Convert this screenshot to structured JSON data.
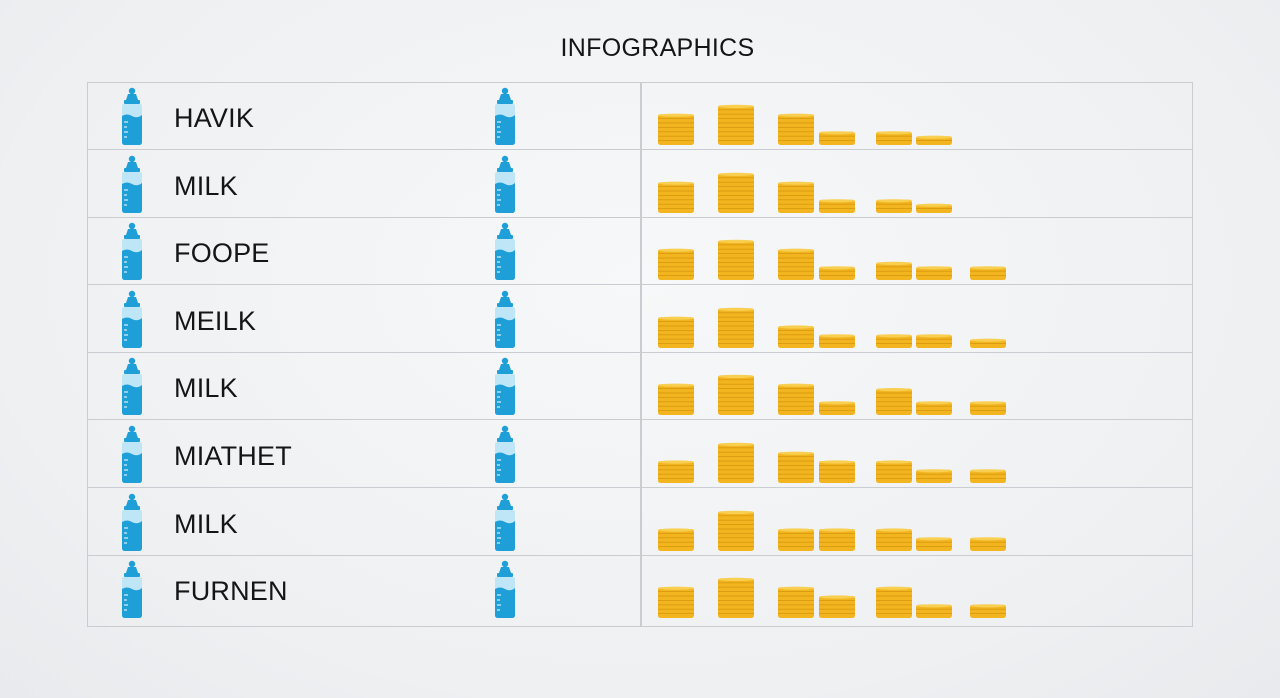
{
  "title": "INFOGRAPHICS",
  "colors": {
    "bottle": "#1e9fd8",
    "bottle_light": "#bfe6f6",
    "coin": "#f2b51f",
    "coin_dark": "#d99a0e",
    "grid": "#c9cdd1"
  },
  "icons": {
    "bottle": "baby-bottle-icon",
    "coin": "coin-stack-icon"
  },
  "chart_data": {
    "type": "table",
    "description_unit": "coins per stack",
    "rows": [
      {
        "label": "HAVIK",
        "stacks": [
          7,
          9,
          7,
          3,
          3,
          2
        ]
      },
      {
        "label": "MILK",
        "stacks": [
          7,
          9,
          7,
          3,
          3,
          2
        ]
      },
      {
        "label": "FOOPE",
        "stacks": [
          7,
          9,
          7,
          3,
          4,
          3,
          3
        ]
      },
      {
        "label": "MEILK",
        "stacks": [
          7,
          9,
          5,
          3,
          3,
          3,
          2
        ]
      },
      {
        "label": "MILK",
        "stacks": [
          7,
          9,
          7,
          3,
          6,
          3,
          3
        ]
      },
      {
        "label": "MIATHET",
        "stacks": [
          5,
          9,
          7,
          5,
          5,
          3,
          3
        ]
      },
      {
        "label": "MILK",
        "stacks": [
          5,
          9,
          5,
          5,
          5,
          3,
          3
        ]
      },
      {
        "label": "FURNEN",
        "stacks": [
          7,
          9,
          7,
          5,
          7,
          3,
          3
        ]
      }
    ]
  }
}
